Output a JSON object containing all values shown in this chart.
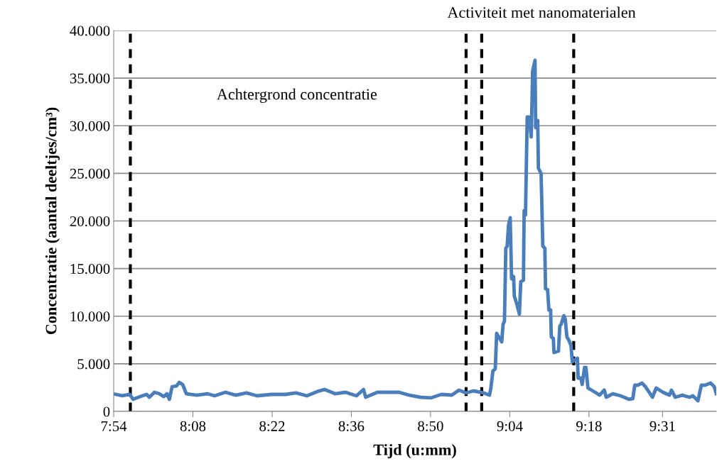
{
  "chart_data": {
    "type": "line",
    "xlabel": "Tijd (u:mm)",
    "ylabel": "Concentratie (aantal deeltjes/cm³)",
    "annotations": [
      "Achtergrond concentratie",
      "Activiteit met nanomaterialen"
    ],
    "series": [
      {
        "color": "#4a7ebb",
        "x": [
          7.905,
          7.926,
          7.947,
          7.957,
          7.978,
          7.997,
          8.005,
          8.02,
          8.034,
          8.047,
          8.057,
          8.064,
          8.072,
          8.085,
          8.093,
          8.103,
          8.114,
          8.145,
          8.176,
          8.197,
          8.229,
          8.26,
          8.291,
          8.322,
          8.364,
          8.406,
          8.437,
          8.469,
          8.5,
          8.521,
          8.552,
          8.583,
          8.615,
          8.636,
          8.642,
          8.677,
          8.709,
          8.74,
          8.771,
          8.803,
          8.834,
          8.865,
          8.896,
          8.917,
          8.938,
          8.959,
          8.99,
          9.007,
          9.011,
          9.017,
          9.024,
          9.028,
          9.043,
          9.047,
          9.051,
          9.055,
          9.059,
          9.063,
          9.068,
          9.072,
          9.078,
          9.08,
          9.088,
          9.095,
          9.099,
          9.107,
          9.109,
          9.113,
          9.118,
          9.124,
          9.13,
          9.134,
          9.141,
          9.143,
          9.149,
          9.151,
          9.159,
          9.164,
          9.17,
          9.172,
          9.178,
          9.182,
          9.187,
          9.189,
          9.195,
          9.197,
          9.21,
          9.214,
          9.218,
          9.226,
          9.23,
          9.235,
          9.241,
          9.247,
          9.251,
          9.266,
          9.268,
          9.276,
          9.28,
          9.287,
          9.291,
          9.297,
          9.318,
          9.331,
          9.345,
          9.351,
          9.37,
          9.393,
          9.418,
          9.429,
          9.435,
          9.445,
          9.456,
          9.466,
          9.487,
          9.498,
          9.518,
          9.537,
          9.543,
          9.554,
          9.575,
          9.596,
          9.606,
          9.621,
          9.631,
          9.642,
          9.658,
          9.669,
          9.675
        ],
        "values": [
          1800,
          1640,
          1790,
          1270,
          1560,
          1790,
          1490,
          2010,
          1860,
          1560,
          1860,
          1270,
          2600,
          2680,
          3050,
          2830,
          1860,
          1710,
          1860,
          1640,
          2010,
          1710,
          1940,
          1640,
          1790,
          1790,
          1940,
          1640,
          2090,
          2310,
          1860,
          2010,
          1640,
          2310,
          1490,
          2010,
          2010,
          2010,
          1710,
          1490,
          1420,
          1790,
          1710,
          2240,
          1940,
          2160,
          1940,
          1710,
          2460,
          4250,
          4470,
          8200,
          7300,
          9160,
          9460,
          17140,
          17360,
          19590,
          20340,
          13930,
          14160,
          12140,
          11180,
          10210,
          13630,
          13780,
          21080,
          20640,
          30920,
          30920,
          28830,
          35760,
          36880,
          29800,
          30550,
          25550,
          24960,
          17360,
          17140,
          12890,
          12810,
          10650,
          10650,
          7820,
          7670,
          6180,
          6330,
          8940,
          9160,
          10060,
          9690,
          7820,
          7450,
          6930,
          5220,
          5590,
          3500,
          3500,
          2830,
          4620,
          4620,
          2460,
          2010,
          1710,
          2240,
          1490,
          1860,
          1640,
          1270,
          1340,
          2760,
          2760,
          2980,
          2610,
          1490,
          2460,
          2010,
          1710,
          2240,
          1490,
          1710,
          1490,
          1640,
          1120,
          2760,
          2760,
          2980,
          2610,
          1860
        ]
      }
    ],
    "xlim": [
      7.9,
      9.675
    ],
    "xticks": [
      {
        "value": 7.9,
        "label": "7:54"
      },
      {
        "value": 8.1333,
        "label": "8:08"
      },
      {
        "value": 8.3667,
        "label": "8:22"
      },
      {
        "value": 8.6,
        "label": "8:36"
      },
      {
        "value": 8.8333,
        "label": "8:50"
      },
      {
        "value": 9.0667,
        "label": "9:04"
      },
      {
        "value": 9.3,
        "label": "9:18"
      },
      {
        "value": 9.5167,
        "label": "9:31"
      }
    ],
    "ylim": [
      0,
      40000
    ],
    "yticks": [
      0,
      {
        "value": 5000,
        "label": "5.000"
      },
      {
        "value": 10000,
        "label": "10.000"
      },
      {
        "value": 15000,
        "label": "15.000"
      },
      {
        "value": 20000,
        "label": "20.000"
      },
      {
        "value": 25000,
        "label": "25.000"
      },
      {
        "value": 30000,
        "label": "30.000"
      },
      {
        "value": 35000,
        "label": "35.000"
      },
      {
        "value": 40000,
        "label": "40.000"
      }
    ],
    "grid": "y",
    "legend": false,
    "marker": "none",
    "line_style": "solid",
    "ref_lines": [
      {
        "axis": "x",
        "value": 7.949,
        "color": "#000000",
        "line_style": "dashed"
      },
      {
        "axis": "x",
        "value": 8.938,
        "color": "#000000",
        "line_style": "dashed"
      },
      {
        "axis": "x",
        "value": 8.984,
        "color": "#000000",
        "line_style": "dashed"
      },
      {
        "axis": "x",
        "value": 9.255,
        "color": "#000000",
        "line_style": "dashed"
      }
    ]
  }
}
